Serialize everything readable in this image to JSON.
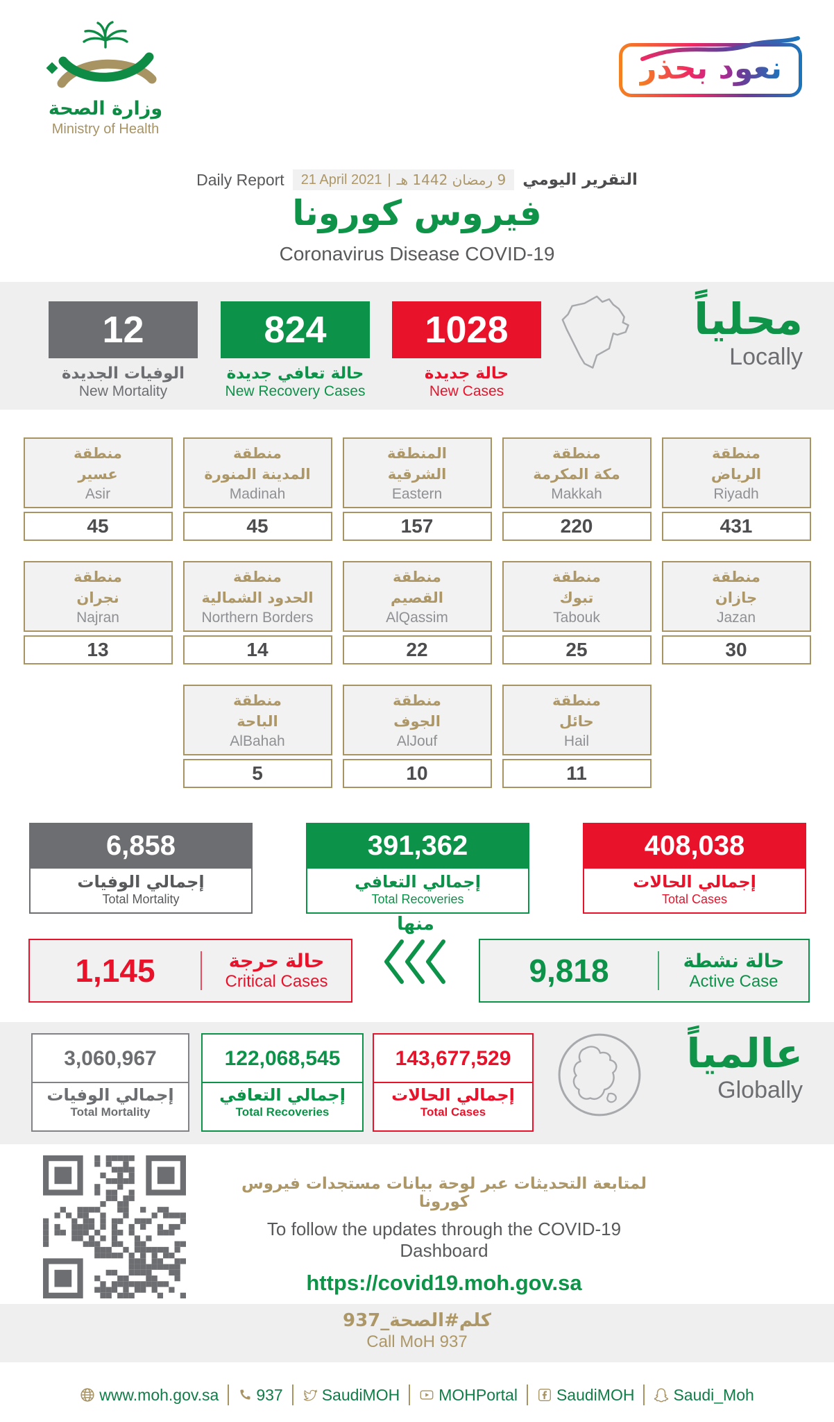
{
  "header": {
    "logo_ar": "وزارة الصحة",
    "logo_en": "Ministry of Health",
    "badge_text": "نعود بحذر"
  },
  "report": {
    "daily_en": "Daily Report",
    "date_en": "21 April 2021",
    "date_divider": "|",
    "date_hijri": "9 رمضان 1442 هـ",
    "daily_ar": "التقرير اليومي",
    "title_ar": "فيروس كورونا",
    "title_en": "Coronavirus Disease COVID-19"
  },
  "locally": {
    "heading_ar": "محلياً",
    "heading_en": "Locally",
    "new_mortality": {
      "value": "12",
      "label_ar": "الوفيات الجديدة",
      "label_en": "New Mortality"
    },
    "new_recoveries": {
      "value": "824",
      "label_ar": "حالة تعافي جديدة",
      "label_en": "New Recovery Cases"
    },
    "new_cases": {
      "value": "1028",
      "label_ar": "حالة جديدة",
      "label_en": "New Cases"
    }
  },
  "regions": {
    "row1": [
      {
        "ar1": "منطقة",
        "ar2": "عسير",
        "en": "Asir",
        "value": "45"
      },
      {
        "ar1": "منطقة",
        "ar2": "المدينة المنورة",
        "en": "Madinah",
        "value": "45"
      },
      {
        "ar1": "المنطقة",
        "ar2": "الشرقية",
        "en": "Eastern",
        "value": "157"
      },
      {
        "ar1": "منطقة",
        "ar2": "مكة المكرمة",
        "en": "Makkah",
        "value": "220"
      },
      {
        "ar1": "منطقة",
        "ar2": "الرياض",
        "en": "Riyadh",
        "value": "431"
      }
    ],
    "row2": [
      {
        "ar1": "منطقة",
        "ar2": "نجران",
        "en": "Najran",
        "value": "13"
      },
      {
        "ar1": "منطقة",
        "ar2": "الحدود الشمالية",
        "en": "Northern Borders",
        "value": "14"
      },
      {
        "ar1": "منطقة",
        "ar2": "القصيم",
        "en": "AlQassim",
        "value": "22"
      },
      {
        "ar1": "منطقة",
        "ar2": "تبوك",
        "en": "Tabouk",
        "value": "25"
      },
      {
        "ar1": "منطقة",
        "ar2": "جازان",
        "en": "Jazan",
        "value": "30"
      }
    ],
    "row3": [
      {
        "ar1": "منطقة",
        "ar2": "الباحة",
        "en": "AlBahah",
        "value": "5"
      },
      {
        "ar1": "منطقة",
        "ar2": "الجوف",
        "en": "AlJouf",
        "value": "10"
      },
      {
        "ar1": "منطقة",
        "ar2": "حائل",
        "en": "Hail",
        "value": "11"
      }
    ]
  },
  "totals": {
    "mortality": {
      "value": "6,858",
      "label_ar": "إجمالي الوفيات",
      "label_en": "Total Mortality"
    },
    "recoveries": {
      "value": "391,362",
      "label_ar": "إجمالي التعافي",
      "label_en": "Total Recoveries"
    },
    "cases": {
      "value": "408,038",
      "label_ar": "إجمالي الحالات",
      "label_en": "Total Cases"
    }
  },
  "breakdown": {
    "critical": {
      "value": "1,145",
      "label_ar": "حالة حرجة",
      "label_en": "Critical Cases"
    },
    "of_which_ar": "منها",
    "active": {
      "value": "9,818",
      "label_ar": "حالة نشطة",
      "label_en": "Active Case"
    }
  },
  "globally": {
    "heading_ar": "عالمياً",
    "heading_en": "Globally",
    "mortality": {
      "value": "3,060,967",
      "label_ar": "إجمالي الوفيات",
      "label_en": "Total Mortality"
    },
    "recoveries": {
      "value": "122,068,545",
      "label_ar": "إجمالي التعافي",
      "label_en": "Total Recoveries"
    },
    "cases": {
      "value": "143,677,529",
      "label_ar": "إجمالي الحالات",
      "label_en": "Total Cases"
    }
  },
  "dashboard": {
    "line_ar": "لمتابعة التحديثات عبر لوحة بيانات مستجدات فيروس كورونا",
    "line_en": "To follow the updates through the COVID-19 Dashboard",
    "url": "https://covid19.moh.gov.sa"
  },
  "call": {
    "ar": "كلم#الصحة_937",
    "en": "Call MoH 937"
  },
  "footer": {
    "website": "www.moh.gov.sa",
    "phone": "937",
    "twitter": "SaudiMOH",
    "youtube": "MOHPortal",
    "facebook": "SaudiMOH",
    "snapchat": "Saudi_Moh"
  },
  "colors": {
    "green": "#0D9249",
    "red": "#E8132B",
    "gray": "#6D6E71",
    "gold": "#A89363"
  }
}
